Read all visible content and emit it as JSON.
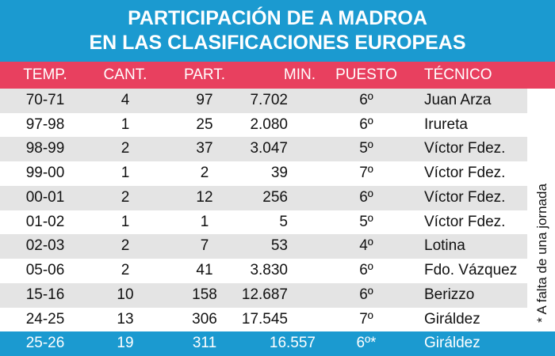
{
  "header": {
    "title_lines": [
      "PARTICIPACIÓN DE A MADROA",
      "EN LAS CLASIFICACIONES EUROPEAS"
    ]
  },
  "table": {
    "columns": [
      "TEMP.",
      "CANT.",
      "PART.",
      "MIN.",
      "PUESTO",
      "TÉCNICO"
    ],
    "rows": [
      [
        "70-71",
        "4",
        "97",
        "7.702",
        "6º",
        "Juan Arza"
      ],
      [
        "97-98",
        "1",
        "25",
        "2.080",
        "6º",
        "Irureta"
      ],
      [
        "98-99",
        "2",
        "37",
        "3.047",
        "5º",
        "Víctor Fdez."
      ],
      [
        "99-00",
        "1",
        "2",
        "39",
        "7º",
        "Víctor Fdez."
      ],
      [
        "00-01",
        "2",
        "12",
        "256",
        "6º",
        "Víctor Fdez."
      ],
      [
        "01-02",
        "1",
        "1",
        "5",
        "5º",
        "Víctor Fdez."
      ],
      [
        "02-03",
        "2",
        "7",
        "53",
        "4º",
        "Lotina"
      ],
      [
        "05-06",
        "2",
        "41",
        "3.830",
        "6º",
        "Fdo. Vázquez"
      ],
      [
        "15-16",
        "10",
        "158",
        "12.687",
        "6º",
        "Berizzo"
      ],
      [
        "24-25",
        "13",
        "306",
        "17.545",
        "7º",
        "Giráldez"
      ],
      [
        "25-26",
        "19",
        "311",
        "16.557",
        "6º*",
        "Giráldez"
      ]
    ]
  },
  "footnote": "* A falta de una jornada"
}
